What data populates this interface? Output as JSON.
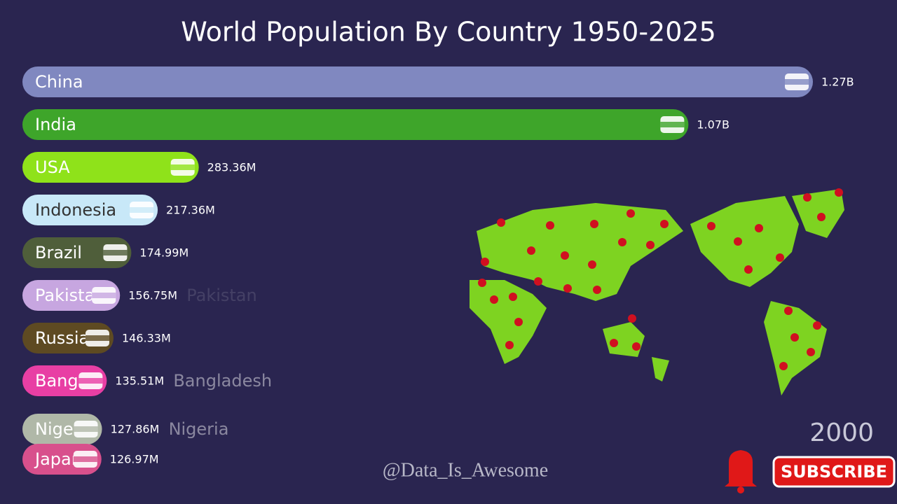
{
  "chart_data": {
    "type": "bar",
    "orientation": "horizontal",
    "title": "World Population By Country 1950-2025",
    "categories": [
      "China",
      "India",
      "USA",
      "Indonesia",
      "Brazil",
      "Pakistan",
      "Russia",
      "Bangladesh",
      "Nigeria",
      "Japan"
    ],
    "values": [
      1270000000,
      1070000000,
      283360000,
      217360000,
      174990000,
      156750000,
      146330000,
      135510000,
      127860000,
      126970000
    ],
    "value_labels": [
      "1.27B",
      "1.07B",
      "283.36M",
      "217.36M",
      "174.99M",
      "156.75M",
      "146.33M",
      "135.51M",
      "127.86M",
      "126.97M"
    ],
    "colors": [
      "#8088c0",
      "#3ea52a",
      "#8fe21a",
      "#c8e8f8",
      "#4f5e3a",
      "#c7a6e0",
      "#5e4a22",
      "#e83fa4",
      "#b0b8a8",
      "#d8508c"
    ],
    "ghost_labels": [
      null,
      null,
      null,
      null,
      null,
      "Pakistan",
      null,
      "Bangladesh",
      "Nigeria",
      null
    ],
    "year": "2000",
    "watermark": "@Data_Is_Awesome",
    "button": "SUBSCRIBE"
  }
}
